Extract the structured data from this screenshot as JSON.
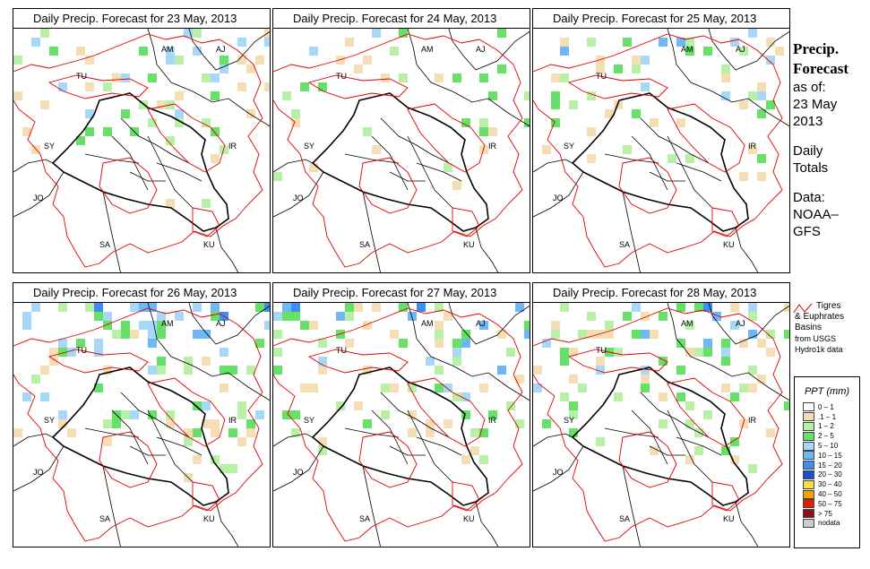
{
  "panels": [
    {
      "title": "Daily Precip. Forecast for  23 May, 2013",
      "seed": 11,
      "intensity": 0.55
    },
    {
      "title": "Daily Precip. Forecast for  24 May, 2013",
      "seed": 23,
      "intensity": 0.35
    },
    {
      "title": "Daily Precip. Forecast for  25 May, 2013",
      "seed": 37,
      "intensity": 0.6
    },
    {
      "title": "Daily Precip. Forecast for  26 May, 2013",
      "seed": 41,
      "intensity": 0.85
    },
    {
      "title": "Daily Precip. Forecast for  27 May, 2013",
      "seed": 53,
      "intensity": 0.75
    },
    {
      "title": "Daily Precip. Forecast for  28 May, 2013",
      "seed": 67,
      "intensity": 0.7
    }
  ],
  "map_labels": [
    "AM",
    "AJ",
    "TU",
    "SY",
    "IR",
    "JO",
    "SA",
    "KU"
  ],
  "side": {
    "line1": "Precip.",
    "line2": "Forecast",
    "line3": "as of:",
    "line4": "23 May",
    "line5": "2013",
    "line6": "Daily",
    "line7": "Totals",
    "line8": "Data:",
    "line9": "NOAA–",
    "line10": "GFS"
  },
  "basin": {
    "line1": "Tigres",
    "line2": "& Euphrates",
    "line3": "Basins",
    "line4": "from USGS",
    "line5": "Hydro1k data"
  },
  "legend": {
    "title": "PPT (mm)",
    "items": [
      {
        "label": "0 – 1",
        "color": "#ffffff"
      },
      {
        "label": ".1 – 1",
        "color": "#f5deb3"
      },
      {
        "label": "1 – 2",
        "color": "#b8f0a8"
      },
      {
        "label": "2 – 5",
        "color": "#66e066"
      },
      {
        "label": "5 – 10",
        "color": "#a8d8f8"
      },
      {
        "label": "10 – 15",
        "color": "#70b8f5"
      },
      {
        "label": "15 – 20",
        "color": "#3c8ef0"
      },
      {
        "label": "20 – 30",
        "color": "#1a50d8"
      },
      {
        "label": "30 – 40",
        "color": "#f8e040"
      },
      {
        "label": "40 – 50",
        "color": "#f8a000"
      },
      {
        "label": "50 – 75",
        "color": "#e02000"
      },
      {
        "label": "> 75",
        "color": "#901010"
      },
      {
        "label": "nodata",
        "color": "#cccccc"
      }
    ]
  }
}
